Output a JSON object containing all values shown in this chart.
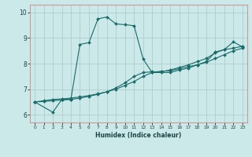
{
  "xlabel": "Humidex (Indice chaleur)",
  "ylabel": "",
  "xlim": [
    -0.5,
    23.5
  ],
  "ylim": [
    5.7,
    10.3
  ],
  "xticks": [
    0,
    1,
    2,
    3,
    4,
    5,
    6,
    7,
    8,
    9,
    10,
    11,
    12,
    13,
    14,
    15,
    16,
    17,
    18,
    19,
    20,
    21,
    22,
    23
  ],
  "yticks": [
    6,
    7,
    8,
    9,
    10
  ],
  "bg_color": "#cce9e9",
  "grid_color": "#b0cccc",
  "line_color": "#1a6b6b",
  "border_color": "#cc9999",
  "series": [
    {
      "x": [
        0,
        1,
        2,
        3,
        4,
        5,
        6,
        7,
        8,
        9,
        10,
        11,
        12,
        13,
        14,
        15,
        16,
        17,
        18,
        19,
        20,
        21,
        22,
        23
      ],
      "y": [
        6.5,
        6.55,
        6.6,
        6.62,
        6.65,
        6.7,
        6.75,
        6.82,
        6.9,
        7.0,
        7.15,
        7.3,
        7.5,
        7.65,
        7.7,
        7.72,
        7.8,
        7.88,
        7.95,
        8.05,
        8.2,
        8.35,
        8.5,
        8.6
      ]
    },
    {
      "x": [
        0,
        1,
        2,
        3,
        4,
        5,
        6,
        7,
        8,
        9,
        10,
        11,
        12,
        13,
        14,
        15,
        16,
        17,
        18,
        19,
        20,
        21,
        22,
        23
      ],
      "y": [
        6.5,
        6.52,
        6.55,
        6.58,
        6.6,
        6.65,
        6.72,
        6.8,
        6.9,
        7.05,
        7.25,
        7.5,
        7.65,
        7.68,
        7.68,
        7.75,
        7.85,
        7.95,
        8.08,
        8.2,
        8.42,
        8.55,
        8.6,
        8.68
      ]
    },
    {
      "x": [
        0,
        2,
        3,
        4,
        5,
        6,
        7,
        8,
        9,
        10,
        11,
        12,
        13,
        14,
        15,
        16,
        17,
        18,
        19,
        20,
        21,
        22,
        23
      ],
      "y": [
        6.5,
        6.1,
        6.6,
        6.6,
        8.75,
        8.82,
        9.75,
        9.82,
        9.55,
        9.52,
        9.48,
        8.18,
        7.65,
        7.65,
        7.65,
        7.75,
        7.82,
        7.95,
        8.08,
        8.45,
        8.55,
        8.85,
        8.65
      ]
    }
  ]
}
